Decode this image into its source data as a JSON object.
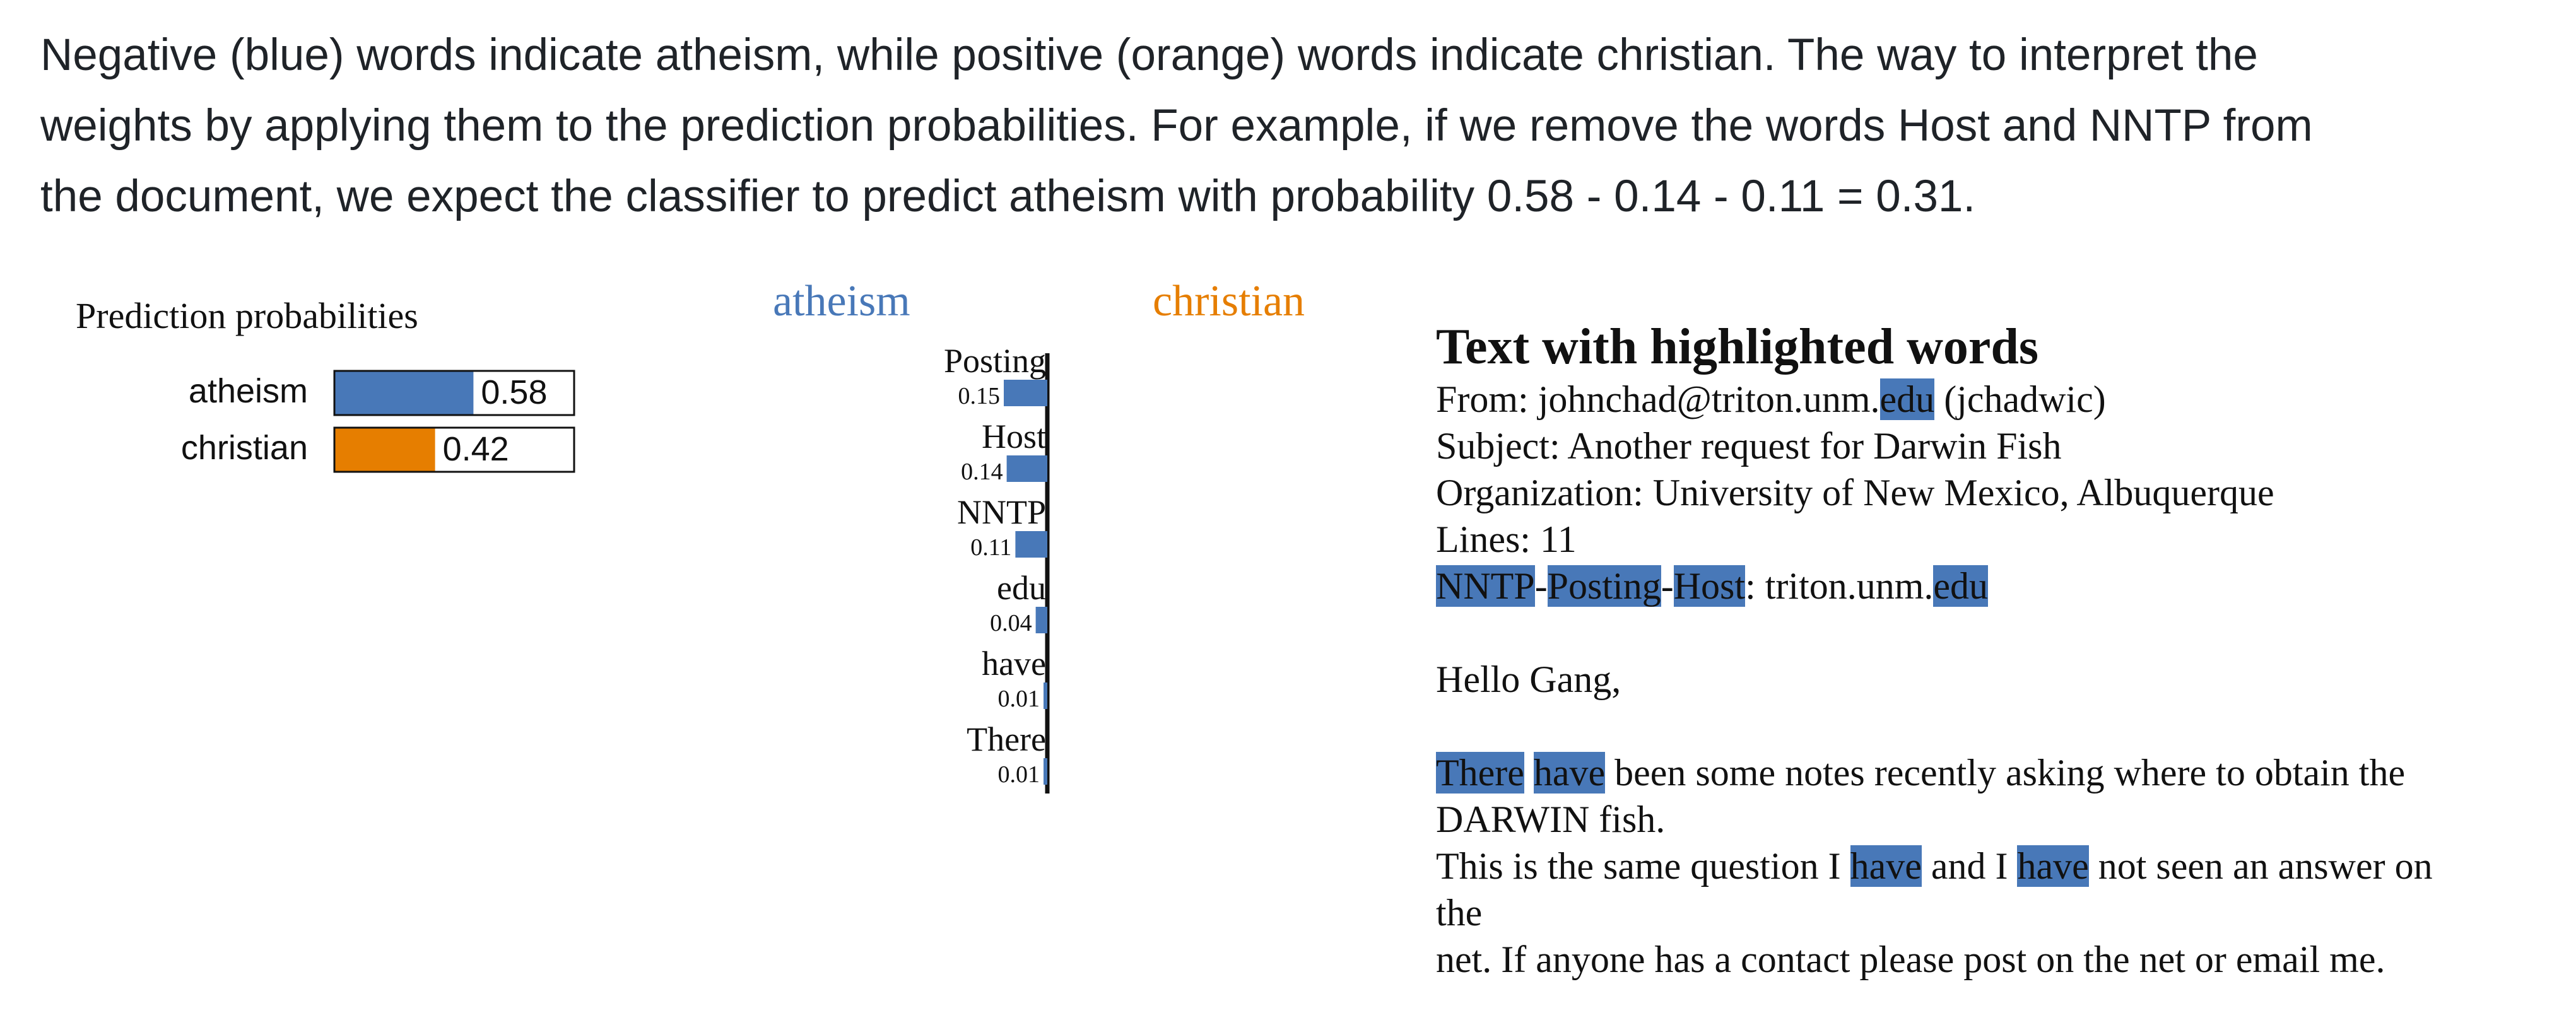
{
  "intro": {
    "line1": "Negative (blue) words indicate atheism, while positive (orange) words indicate christian. The way to interpret the",
    "line2": "weights by applying them to the prediction probabilities. For example, if we remove the words Host and NNTP from",
    "line3": "the document, we expect the classifier to predict atheism with probability 0.58 - 0.14 - 0.11 = 0.31."
  },
  "colors": {
    "atheism": "#4878b8",
    "christian": "#e67e00"
  },
  "chart_data": [
    {
      "type": "bar",
      "title": "Prediction probabilities",
      "categories": [
        "atheism",
        "christian"
      ],
      "values": [
        0.58,
        0.42
      ],
      "xlim": [
        0,
        1
      ]
    },
    {
      "type": "bar",
      "title": "",
      "legend": [
        "atheism",
        "christian"
      ],
      "categories": [
        "Posting",
        "Host",
        "NNTP",
        "edu",
        "have",
        "There"
      ],
      "values": [
        -0.15,
        -0.14,
        -0.11,
        -0.04,
        -0.01,
        -0.01
      ],
      "value_labels": [
        "0.15",
        "0.14",
        "0.11",
        "0.04",
        "0.01",
        "0.01"
      ]
    }
  ],
  "text_panel": {
    "heading": "Text with highlighted words",
    "lines": [
      [
        {
          "t": "From: johnchad@triton.unm."
        },
        {
          "t": "edu",
          "h": true
        },
        {
          "t": " (jchadwic)"
        }
      ],
      [
        {
          "t": "Subject: Another request for Darwin Fish"
        }
      ],
      [
        {
          "t": "Organization: University of New Mexico, Albuquerque"
        }
      ],
      [
        {
          "t": "Lines: 11"
        }
      ],
      [
        {
          "t": "NNTP",
          "h": true
        },
        {
          "t": "-"
        },
        {
          "t": "Posting",
          "h": true
        },
        {
          "t": "-"
        },
        {
          "t": "Host",
          "h": true
        },
        {
          "t": ": triton.unm."
        },
        {
          "t": "edu",
          "h": true
        }
      ],
      [],
      [
        {
          "t": "Hello Gang,"
        }
      ],
      [],
      [
        {
          "t": "There",
          "h": true
        },
        {
          "t": " "
        },
        {
          "t": "have",
          "h": true
        },
        {
          "t": " been some notes recently asking where to obtain the"
        }
      ],
      [
        {
          "t": "DARWIN fish."
        }
      ],
      [
        {
          "t": "This is the same question I "
        },
        {
          "t": "have",
          "h": true
        },
        {
          "t": " and I "
        },
        {
          "t": "have",
          "h": true
        },
        {
          "t": " not seen an answer on"
        }
      ],
      [
        {
          "t": "the"
        }
      ],
      [
        {
          "t": "net. If anyone has a contact please post on the net or email me."
        }
      ]
    ]
  }
}
